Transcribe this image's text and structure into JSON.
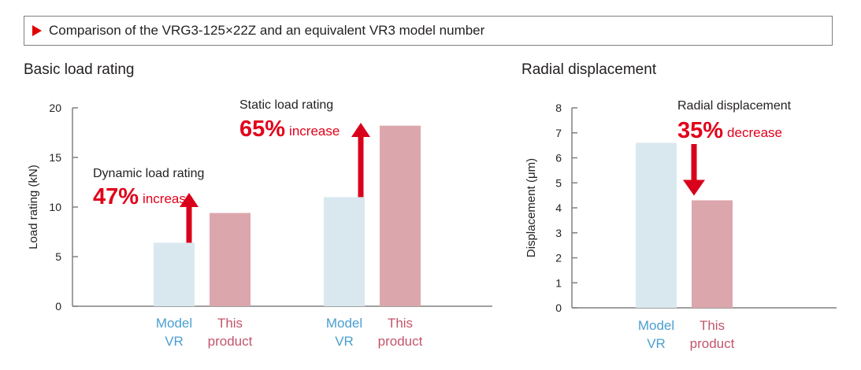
{
  "header": {
    "text": "Comparison of the VRG3-125×22Z and an equivalent VR3 model number",
    "marker_color": "#e00000"
  },
  "colors": {
    "model_vr": "#d9e8ef",
    "this_product": "#dca6ad",
    "model_vr_text": "#4a9fd0",
    "this_product_text": "#c4546a",
    "arrow": "#d9001b",
    "axis": "#808080"
  },
  "chart_data": [
    {
      "type": "bar",
      "title": "Basic load rating",
      "ylabel": "Load rating (kN)",
      "ylim": [
        0,
        20
      ],
      "yticks": [
        "0",
        "5",
        "10",
        "15",
        "20"
      ],
      "groups": [
        {
          "bars": [
            {
              "category_line1": "Model",
              "category_line2": "VR",
              "value": 6.4,
              "series": "model_vr"
            },
            {
              "category_line1": "This",
              "category_line2": "product",
              "value": 9.4,
              "series": "this_product"
            }
          ],
          "annotation": {
            "label": "Dynamic load rating",
            "percent": "47%",
            "word": "increase",
            "direction": "up"
          }
        },
        {
          "bars": [
            {
              "category_line1": "Model",
              "category_line2": "VR",
              "value": 11.0,
              "series": "model_vr"
            },
            {
              "category_line1": "This",
              "category_line2": "product",
              "value": 18.2,
              "series": "this_product"
            }
          ],
          "annotation": {
            "label": "Static load rating",
            "percent": "65%",
            "word": "increase",
            "direction": "up"
          }
        }
      ]
    },
    {
      "type": "bar",
      "title": "Radial displacement",
      "ylabel": "Displacement (μm)",
      "ylim": [
        0,
        8
      ],
      "yticks": [
        "0",
        "1",
        "2",
        "3",
        "4",
        "5",
        "6",
        "7",
        "8"
      ],
      "groups": [
        {
          "bars": [
            {
              "category_line1": "Model",
              "category_line2": "VR",
              "value": 6.6,
              "series": "model_vr"
            },
            {
              "category_line1": "This",
              "category_line2": "product",
              "value": 4.3,
              "series": "this_product"
            }
          ],
          "annotation": {
            "label": "Radial displacement",
            "percent": "35%",
            "word": "decrease",
            "direction": "down"
          }
        }
      ]
    }
  ]
}
